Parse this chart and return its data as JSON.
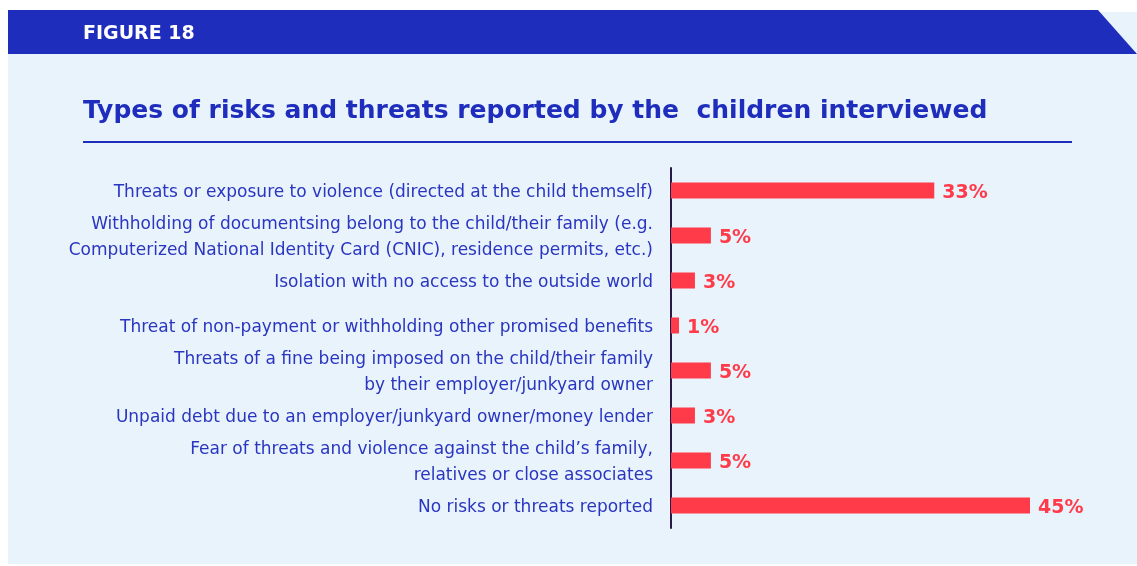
{
  "chart_data": {
    "type": "bar",
    "orientation": "horizontal",
    "title": "Types of risks and threats reported by the  children interviewed",
    "annotations": [
      "FIGURE 18"
    ],
    "categories": [
      "Threats or exposure to violence (directed at the child themself)",
      "Withholding of documentsing belong to the child/their family (e.g.\nComputerized National Identity Card (CNIC), residence permits, etc.)",
      "Isolation with no access to the outside world",
      "Threat of non-payment or withholding other promised benefits",
      "Threats of a fine being imposed on the child/their family\nby their employer/junkyard owner",
      "Unpaid debt due to an employer/junkyard owner/money lender",
      "Fear of threats and violence against the child’s family,\nrelatives or close associates",
      "No risks or threats reported"
    ],
    "values": [
      33,
      5,
      3,
      1,
      5,
      3,
      5,
      45
    ],
    "value_labels": [
      "33%",
      "5%",
      "3%",
      "1%",
      "5%",
      "3%",
      "5%",
      "45%"
    ],
    "color": "#ff3b4a"
  }
}
